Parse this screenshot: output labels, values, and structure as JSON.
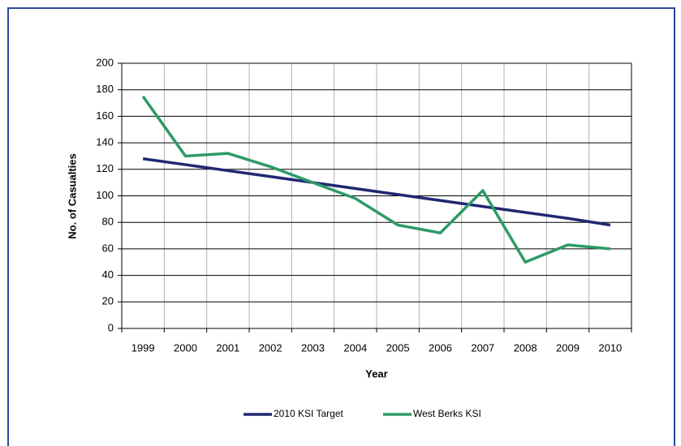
{
  "chart_data": {
    "type": "line",
    "categories": [
      "1999",
      "2000",
      "2001",
      "2002",
      "2003",
      "2004",
      "2005",
      "2006",
      "2007",
      "2008",
      "2009",
      "2010"
    ],
    "series": [
      {
        "name": "2010 KSI Target",
        "color": "#1f2872",
        "values": [
          128,
          123.5,
          119,
          114.5,
          110,
          105.5,
          101,
          96.5,
          92,
          87.5,
          83,
          78
        ]
      },
      {
        "name": "West Berks KSI",
        "color": "#2e9a68",
        "values": [
          175,
          130,
          132,
          122,
          110,
          98,
          78,
          72,
          104,
          50,
          63,
          60
        ]
      }
    ],
    "xlabel": "Year",
    "ylabel": "No. of Casualties",
    "ylim": [
      0,
      200
    ],
    "yticks": [
      0,
      20,
      40,
      60,
      80,
      100,
      120,
      140,
      160,
      180,
      200
    ],
    "grid": true,
    "legend": "bottom"
  }
}
